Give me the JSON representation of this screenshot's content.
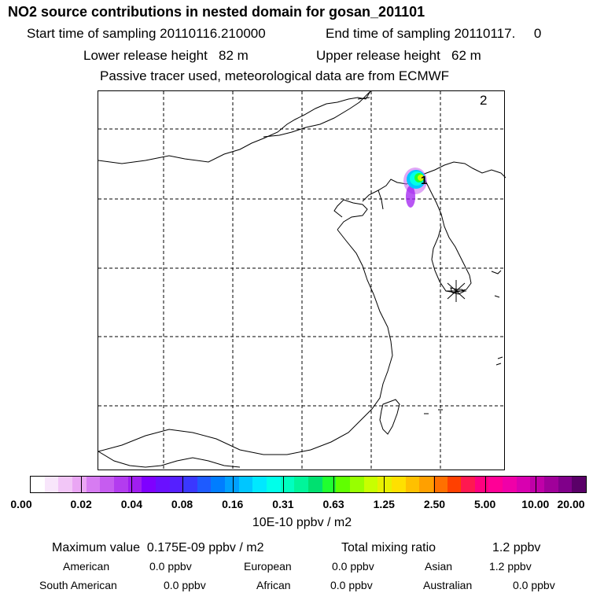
{
  "header": {
    "title": "NO2 source contributions in nested domain for gosan_201101",
    "start_label": "Start time of sampling 20110116.210000",
    "end_label": "End time of sampling 20110117.     0",
    "lower_height": "Lower release height   82 m",
    "upper_height": "Upper release height   62 m",
    "tracer_note": "Passive tracer used, meteorological data are from ECMWF"
  },
  "map": {
    "corner_label": "2",
    "release_marker": "1",
    "receptor": "gosan"
  },
  "chart_data": {
    "type": "heatmap",
    "title": "NO2 source contributions in nested domain for gosan_201101",
    "colorbar": {
      "ticks": [
        "0.00",
        "0.02",
        "0.04",
        "0.08",
        "0.16",
        "0.31",
        "0.63",
        "1.25",
        "2.50",
        "5.00",
        "10.00",
        "20.00"
      ],
      "colors": [
        "#ffffff",
        "#f8e6fb",
        "#f2c6f7",
        "#eaa6f4",
        "#d77cf2",
        "#c65cf0",
        "#b33cef",
        "#a01ef0",
        "#7f00ff",
        "#6a10ff",
        "#5520ff",
        "#3a38ff",
        "#1e5bff",
        "#007dff",
        "#00a0ff",
        "#00c6ff",
        "#00e8ff",
        "#00ffea",
        "#00ffc0",
        "#00f59a",
        "#00e070",
        "#20ff30",
        "#60ff00",
        "#98ff00",
        "#c8ff00",
        "#e8f000",
        "#ffe000",
        "#ffc000",
        "#ffa000",
        "#ff7000",
        "#ff4000",
        "#ff1850",
        "#ff0080",
        "#ff0096",
        "#f000a8",
        "#d800b0",
        "#c000a8",
        "#a0009a",
        "#80008a",
        "#5a0068"
      ],
      "units": "10E-10 ppbv / m2"
    },
    "max_value": "0.175E-09",
    "plume": {
      "description": "plume over northeast China near marker 1"
    }
  },
  "stats": {
    "max_label": "Maximum value  0.175E-09 ppbv / m2",
    "total_label": "Total mixing ratio",
    "total_value": "1.2 ppbv",
    "regions": [
      {
        "name": "American",
        "value": "0.0 ppbv"
      },
      {
        "name": "European",
        "value": "0.0 ppbv"
      },
      {
        "name": "Asian",
        "value": "1.2 ppbv"
      },
      {
        "name": "South American",
        "value": "0.0 ppbv"
      },
      {
        "name": "African",
        "value": "0.0 ppbv"
      },
      {
        "name": "Australian",
        "value": "0.0 ppbv"
      }
    ]
  }
}
